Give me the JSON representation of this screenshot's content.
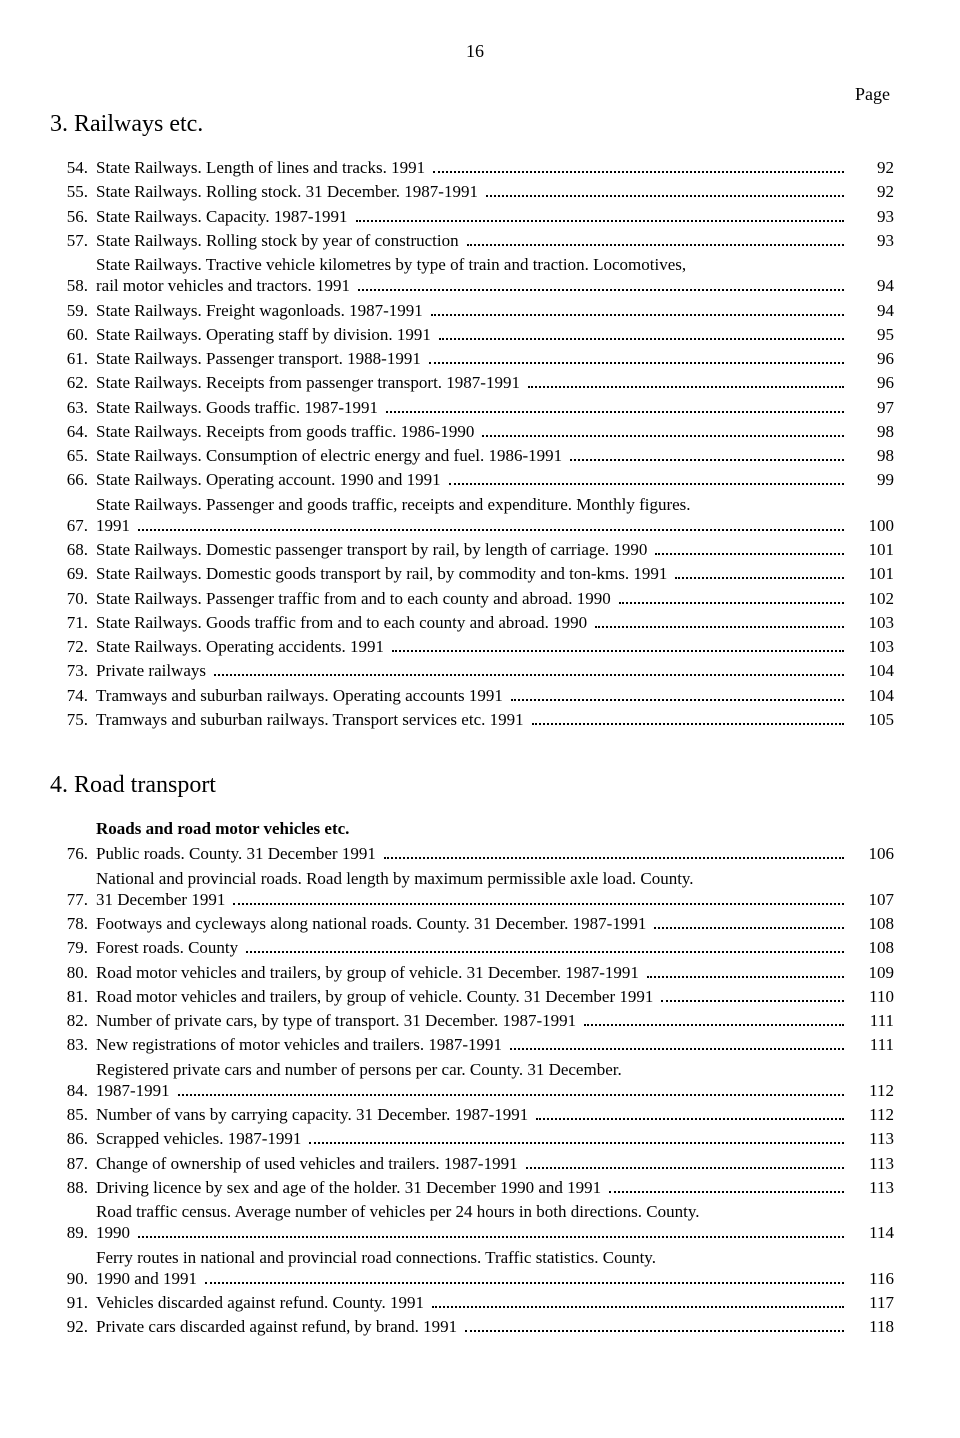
{
  "page_number": "16",
  "page_label": "Page",
  "sections": [
    {
      "heading": "3.  Railways etc.",
      "subheading": null,
      "entries": [
        {
          "num": "54.",
          "title": "State Railways.  Length of lines and tracks.  1991",
          "page": "92",
          "multiline": false
        },
        {
          "num": "55.",
          "title": "State Railways.  Rolling stock.  31 December.  1987-1991",
          "page": "92",
          "multiline": false
        },
        {
          "num": "56.",
          "title": "State Railways.  Capacity.  1987-1991",
          "page": "93",
          "multiline": false
        },
        {
          "num": "57.",
          "title": "State Railways.  Rolling stock by year of construction",
          "page": "93",
          "multiline": false
        },
        {
          "num": "58.",
          "title_line1": "State Railways.  Tractive vehicle kilometres by type of train and traction.  Locomotives,",
          "title_line2": "rail motor vehicles and tractors.  1991",
          "page": "94",
          "multiline": true
        },
        {
          "num": "59.",
          "title": "State Railways.  Freight wagonloads.  1987-1991",
          "page": "94",
          "multiline": false
        },
        {
          "num": "60.",
          "title": "State Railways.  Operating staff by division.  1991",
          "page": "95",
          "multiline": false
        },
        {
          "num": "61.",
          "title": "State Railways.  Passenger transport.  1988-1991",
          "page": "96",
          "multiline": false
        },
        {
          "num": "62.",
          "title": "State Railways.  Receipts from passenger transport.  1987-1991",
          "page": "96",
          "multiline": false
        },
        {
          "num": "63.",
          "title": "State Railways.  Goods traffic.  1987-1991",
          "page": "97",
          "multiline": false
        },
        {
          "num": "64.",
          "title": "State Railways.  Receipts from goods traffic.  1986-1990",
          "page": "98",
          "multiline": false
        },
        {
          "num": "65.",
          "title": "State Railways.  Consumption of electric energy and fuel.  1986-1991",
          "page": "98",
          "multiline": false
        },
        {
          "num": "66.",
          "title": "State Railways.  Operating account.  1990 and 1991",
          "page": "99",
          "multiline": false
        },
        {
          "num": "67.",
          "title_line1": "State Railways.  Passenger and goods traffic, receipts and expenditure.  Monthly figures.",
          "title_line2": "1991",
          "page": "100",
          "multiline": true
        },
        {
          "num": "68.",
          "title": "State Railways.  Domestic passenger transport by rail, by length of carriage.  1990",
          "page": "101",
          "multiline": false
        },
        {
          "num": "69.",
          "title": "State Railways.  Domestic goods transport by rail, by commodity and ton-kms.  1991",
          "page": "101",
          "multiline": false
        },
        {
          "num": "70.",
          "title": "State Railways.  Passenger traffic from and to each county and abroad.  1990",
          "page": "102",
          "multiline": false
        },
        {
          "num": "71.",
          "title": "State Railways.  Goods traffic from and to each county and abroad.  1990",
          "page": "103",
          "multiline": false
        },
        {
          "num": "72.",
          "title": "State Railways.  Operating accidents.  1991",
          "page": "103",
          "multiline": false
        },
        {
          "num": "73.",
          "title": "Private railways",
          "page": "104",
          "multiline": false
        },
        {
          "num": "74.",
          "title": "Tramways and suburban railways.  Operating accounts 1991",
          "page": "104",
          "multiline": false
        },
        {
          "num": "75.",
          "title": "Tramways and suburban railways.  Transport services etc.  1991",
          "page": "105",
          "multiline": false
        }
      ]
    },
    {
      "heading": "4.  Road transport",
      "subheading": "Roads and road motor vehicles etc.",
      "entries": [
        {
          "num": "76.",
          "title": "Public roads.  County.  31 December 1991",
          "page": "106",
          "multiline": false
        },
        {
          "num": "77.",
          "title_line1": "National and provincial roads.  Road length by maximum permissible axle load.  County.",
          "title_line2": "31 December 1991",
          "page": "107",
          "multiline": true
        },
        {
          "num": "78.",
          "title": "Footways and cycleways along national roads.  County.  31 December.  1987-1991",
          "page": "108",
          "multiline": false
        },
        {
          "num": "79.",
          "title": "Forest roads.  County",
          "page": "108",
          "multiline": false
        },
        {
          "num": "80.",
          "title": "Road motor vehicles and trailers, by group of vehicle.  31 December.  1987-1991",
          "page": "109",
          "multiline": false
        },
        {
          "num": "81.",
          "title": "Road motor vehicles and trailers, by group of vehicle.  County.  31 December 1991",
          "page": "110",
          "multiline": false
        },
        {
          "num": "82.",
          "title": "Number of private cars, by type of transport.  31 December.  1987-1991",
          "page": "111",
          "multiline": false
        },
        {
          "num": "83.",
          "title": "New registrations of motor vehicles and trailers.  1987-1991",
          "page": "111",
          "multiline": false
        },
        {
          "num": "84.",
          "title_line1": "Registered private cars and number of persons per car.  County.  31 December.",
          "title_line2": "1987-1991",
          "page": "112",
          "multiline": true
        },
        {
          "num": "85.",
          "title": "Number of vans by carrying capacity.  31 December.  1987-1991",
          "page": "112",
          "multiline": false
        },
        {
          "num": "86.",
          "title": "Scrapped vehicles.  1987-1991",
          "page": "113",
          "multiline": false
        },
        {
          "num": "87.",
          "title": "Change of ownership of used vehicles and trailers.  1987-1991",
          "page": "113",
          "multiline": false
        },
        {
          "num": "88.",
          "title": "Driving licence by sex and age of the holder.  31 December 1990 and 1991",
          "page": "113",
          "multiline": false
        },
        {
          "num": "89.",
          "title_line1": "Road traffic census.  Average number of vehicles per 24 hours in both directions.  County.",
          "title_line2": "1990",
          "page": "114",
          "multiline": true
        },
        {
          "num": "90.",
          "title_line1": "Ferry routes in national and provincial road connections.  Traffic statistics.  County.",
          "title_line2": "1990 and 1991",
          "page": "116",
          "multiline": true
        },
        {
          "num": "91.",
          "title": "Vehicles discarded against refund.  County.  1991",
          "page": "117",
          "multiline": false
        },
        {
          "num": "92.",
          "title": "Private cars discarded against refund, by brand.  1991",
          "page": "118",
          "multiline": false
        }
      ]
    }
  ]
}
